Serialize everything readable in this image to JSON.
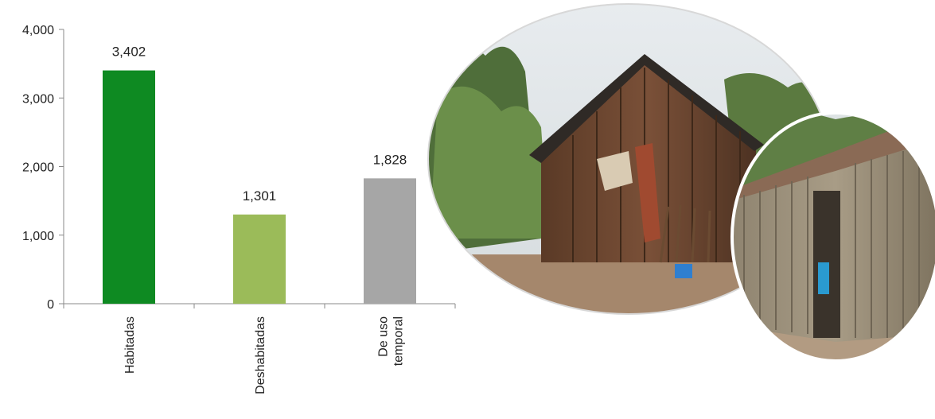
{
  "chart_data": {
    "type": "bar",
    "categories": [
      "Habitadas",
      "Deshabitadas",
      "De uso temporal"
    ],
    "category_lines": [
      [
        "Habitadas"
      ],
      [
        "Deshabitadas"
      ],
      [
        "De uso",
        "temporal"
      ]
    ],
    "values": [
      3402,
      1301,
      1828
    ],
    "value_labels": [
      "3,402",
      "1,301",
      "1,828"
    ],
    "colors": [
      "#0e8a22",
      "#9bbb59",
      "#a6a6a6"
    ],
    "ylim": [
      0,
      4000
    ],
    "yticks": [
      0,
      1000,
      2000,
      3000,
      4000
    ],
    "ytick_labels": [
      "0",
      "1,000",
      "2,000",
      "3,000",
      "4,000"
    ],
    "title": "",
    "xlabel": "",
    "ylabel": "",
    "grid": false,
    "legend": "none"
  },
  "photos": {
    "left_photo_icon": "wooden-house-photo",
    "right_photo_icon": "cane-wall-house-photo"
  }
}
